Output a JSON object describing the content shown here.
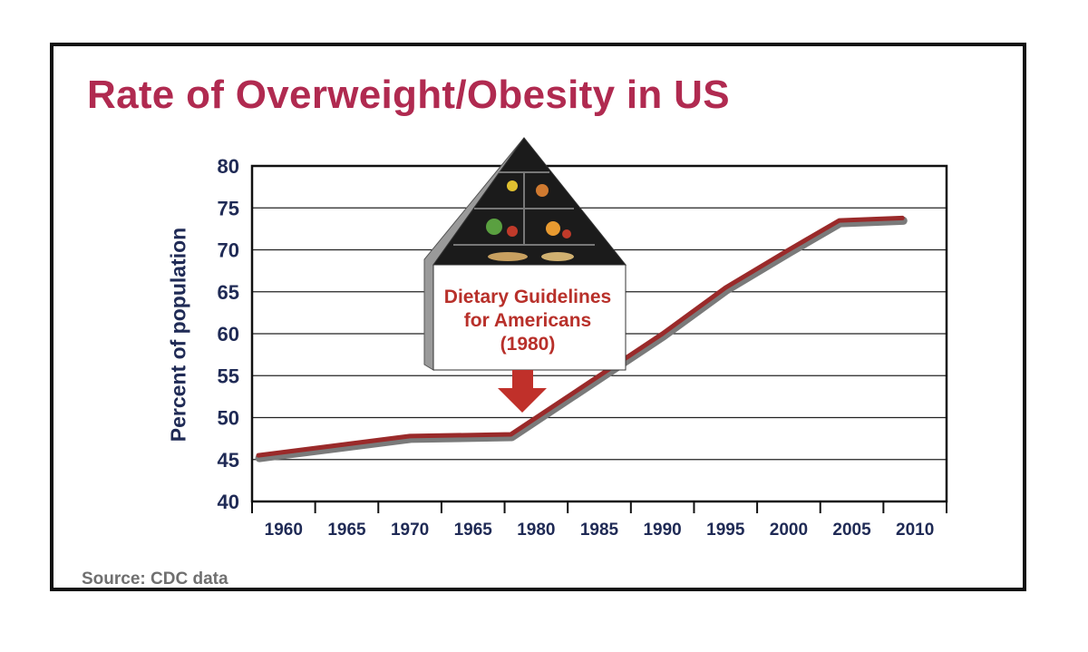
{
  "chart_data": {
    "type": "line",
    "title": "Rate of Overweight/Obesity in US",
    "ylabel": "Percent of population",
    "xlabel": "",
    "ylim": [
      40,
      80
    ],
    "yticks": [
      40,
      45,
      50,
      55,
      60,
      65,
      70,
      75,
      80
    ],
    "categories": [
      "1960",
      "1965",
      "1970",
      "1965",
      "1980",
      "1985",
      "1990",
      "1995",
      "2000",
      "2005",
      "2010"
    ],
    "points": [
      {
        "x": 1958,
        "y": 45.5
      },
      {
        "x": 1970,
        "y": 47.8
      },
      {
        "x": 1978,
        "y": 48.0
      },
      {
        "x": 1990,
        "y": 60.0
      },
      {
        "x": 1995,
        "y": 65.5
      },
      {
        "x": 2000,
        "y": 70.0
      },
      {
        "x": 2004,
        "y": 73.5
      },
      {
        "x": 2009,
        "y": 73.8
      }
    ],
    "grid": true,
    "line_color": "#9a2a2a"
  },
  "annotation": {
    "line1": "Dietary Guidelines",
    "line2": "for Americans",
    "line3": "(1980)",
    "icon": "food-pyramid-icon",
    "arrow": "down-arrow-icon",
    "color": "#b8302a"
  },
  "source": "Source: CDC data",
  "colors": {
    "title": "#b02a50",
    "axis_text": "#1f2a55",
    "source": "#6f6f6f"
  }
}
